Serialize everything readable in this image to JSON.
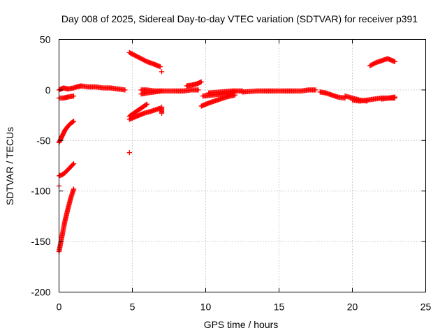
{
  "chart_data": {
    "type": "scatter",
    "title": "Day 008 of 2025, Sidereal Day-to-day VTEC variation (SDTVAR) for receiver p391",
    "xlabel": "GPS time / hours",
    "ylabel": "SDTVAR / TECUs",
    "xlim": [
      0,
      25
    ],
    "ylim": [
      -200,
      50
    ],
    "xticks": [
      0,
      5,
      10,
      15,
      20,
      25
    ],
    "yticks": [
      -200,
      -150,
      -100,
      -50,
      0,
      50
    ],
    "grid": true,
    "marker": "+",
    "color": "#ff0000",
    "series": [
      {
        "name": "s01",
        "x": [
          0.0,
          0.2,
          0.4,
          0.6,
          0.8,
          1.0
        ],
        "y": [
          -160,
          -145,
          -130,
          -118,
          -107,
          -98
        ]
      },
      {
        "name": "s02",
        "x": [
          0.0,
          0.2,
          0.4,
          0.6,
          0.8,
          1.0
        ],
        "y": [
          -52,
          -46,
          -40,
          -36,
          -33,
          -31
        ]
      },
      {
        "name": "s03",
        "x": [
          0.0,
          0.2,
          0.4,
          0.6,
          0.8,
          1.0
        ],
        "y": [
          -85,
          -84,
          -82,
          -79,
          -76,
          -73
        ]
      },
      {
        "name": "s04",
        "x": [
          0.0,
          0.3,
          0.6,
          1.0
        ],
        "y": [
          -8,
          -8,
          -7,
          -6
        ]
      },
      {
        "name": "s05",
        "x": [
          0.0,
          0.3,
          0.6,
          1.0,
          1.2,
          1.5
        ],
        "y": [
          0,
          2,
          1,
          2,
          3,
          4
        ]
      },
      {
        "name": "s06",
        "x": [
          1.5,
          2.0,
          2.5,
          3.0,
          3.5,
          4.0,
          4.5
        ],
        "y": [
          4,
          3,
          3,
          2,
          2,
          1,
          0
        ]
      },
      {
        "name": "s07",
        "x": [
          4.8,
          5.2,
          5.6,
          6.0,
          6.4,
          6.9
        ],
        "y": [
          37,
          34,
          31,
          28,
          26,
          23
        ]
      },
      {
        "name": "s08",
        "x": [
          4.8,
          5.3,
          5.8,
          6.3,
          6.9
        ],
        "y": [
          -29,
          -26,
          -23,
          -21,
          -18
        ]
      },
      {
        "name": "s09",
        "x": [
          4.8,
          5.2,
          5.6,
          6.0
        ],
        "y": [
          -26,
          -22,
          -18,
          -14
        ]
      },
      {
        "name": "s10",
        "x": [
          4.8
        ],
        "y": [
          -62
        ]
      },
      {
        "name": "s11",
        "x": [
          0.0
        ],
        "y": [
          -95
        ]
      },
      {
        "name": "s12",
        "x": [
          5.6,
          6.0,
          6.5,
          7.0,
          7.5,
          8.0,
          8.5,
          9.0,
          9.5
        ],
        "y": [
          -4,
          -3,
          -2,
          -1,
          -1,
          -1,
          -1,
          0,
          0
        ]
      },
      {
        "name": "s13",
        "x": [
          5.6,
          6.0,
          6.5,
          7.0
        ],
        "y": [
          0,
          0,
          -1,
          -1
        ]
      },
      {
        "name": "s14",
        "x": [
          8.7,
          9.1,
          9.4,
          9.7
        ],
        "y": [
          4,
          5,
          6,
          8
        ]
      },
      {
        "name": "s15",
        "x": [
          7.0
        ],
        "y": [
          18
        ]
      },
      {
        "name": "s16",
        "x": [
          7.0,
          7.0
        ],
        "y": [
          -17,
          -23
        ]
      },
      {
        "name": "s17",
        "x": [
          9.7,
          10.2,
          10.8,
          11.4,
          12.0
        ],
        "y": [
          -16,
          -13,
          -10,
          -7,
          -5
        ]
      },
      {
        "name": "s18",
        "x": [
          9.8,
          10.5,
          11.2,
          12.0
        ],
        "y": [
          -6,
          -5,
          -4,
          -2
        ]
      },
      {
        "name": "s19",
        "x": [
          10.2,
          11.0,
          11.8,
          12.5
        ],
        "y": [
          -3,
          -2,
          -1,
          -1
        ]
      },
      {
        "name": "s20",
        "x": [
          12.5,
          13.5,
          14.5,
          15.5,
          16.5,
          17.0,
          17.5
        ],
        "y": [
          -2,
          -1,
          -1,
          -1,
          -1,
          0,
          0
        ]
      },
      {
        "name": "s21",
        "x": [
          17.8,
          18.2,
          18.6,
          19.0,
          19.5
        ],
        "y": [
          -2,
          -3,
          -5,
          -7,
          -8
        ]
      },
      {
        "name": "s22",
        "x": [
          19.5,
          20.0,
          20.5,
          21.0
        ],
        "y": [
          -6,
          -8,
          -10,
          -11
        ]
      },
      {
        "name": "s23",
        "x": [
          20.0,
          20.5,
          21.0,
          21.5,
          22.0,
          22.5,
          22.9
        ],
        "y": [
          -10,
          -11,
          -10,
          -9,
          -8,
          -8,
          -7
        ]
      },
      {
        "name": "s24",
        "x": [
          21.2,
          21.6,
          22.0,
          22.4,
          22.9
        ],
        "y": [
          24,
          27,
          29,
          31,
          28
        ]
      },
      {
        "name": "s25",
        "x": [
          22.0,
          22.5,
          22.9
        ],
        "y": [
          -9,
          -8,
          -8
        ]
      }
    ]
  }
}
